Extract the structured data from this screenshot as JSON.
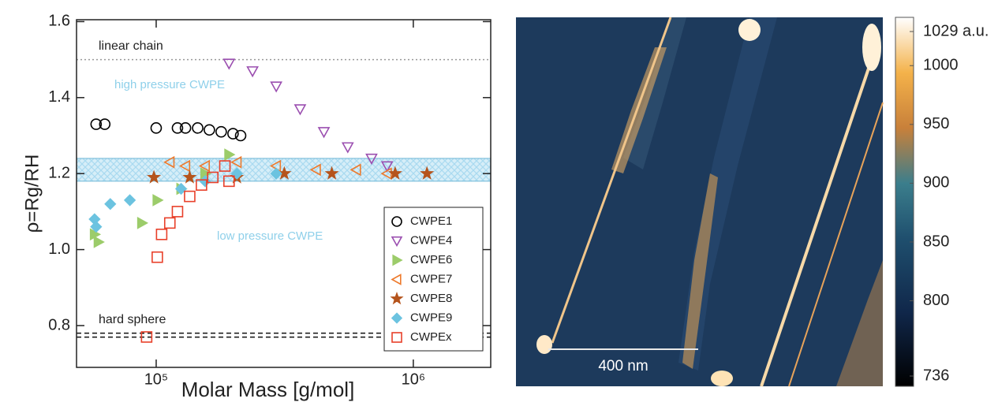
{
  "chart_data": [
    {
      "type": "scatter",
      "x_label": "Molar Mass [g/mol]",
      "y_label": "ρ=Rg/RH",
      "log_x": true,
      "xlim": [
        49000,
        2000000
      ],
      "xticks": [
        {
          "value": 100000,
          "label": "10⁵"
        },
        {
          "value": 1000000,
          "label": "10⁶"
        }
      ],
      "ylim": [
        0.69,
        1.605
      ],
      "yticks": [
        0.8,
        {
          "value": 1,
          "label": "1.0"
        },
        1.2,
        1.4,
        1.6
      ],
      "hlines": [
        {
          "value": 1.5,
          "style": "dotted",
          "label": "linear chain"
        },
        {
          "value": 0.78,
          "style": "dashed",
          "label": "hard sphere"
        }
      ],
      "band": [
        1.18,
        1.24
      ],
      "annotations": [
        "high pressure CWPE",
        "low pressure CWPE"
      ],
      "legend": "lower right",
      "series": [
        {
          "name": "CWPE1",
          "color": "#000000",
          "marker": "circle",
          "filled": false,
          "x": [
            58400,
            63100,
            100000,
            121000,
            130000,
            145000,
            161000,
            179000,
            199000,
            213000
          ],
          "values": [
            1.33,
            1.33,
            1.32,
            1.32,
            1.32,
            1.32,
            1.315,
            1.31,
            1.305,
            1.3
          ]
        },
        {
          "name": "CWPE4",
          "color": "#9b4fb0",
          "marker": "triangle-down",
          "filled": false,
          "x": [
            192000,
            237000,
            293000,
            363000,
            449000,
            556000,
            688000,
            791000
          ],
          "values": [
            1.49,
            1.47,
            1.43,
            1.37,
            1.31,
            1.27,
            1.24,
            1.22
          ]
        },
        {
          "name": "CWPE6",
          "color": "#9ccc6a",
          "marker": "triangle-right",
          "filled": true,
          "x": [
            57600,
            59600,
            88000,
            101000,
            125000,
            155000,
            192000
          ],
          "values": [
            1.04,
            1.02,
            1.07,
            1.13,
            1.16,
            1.2,
            1.25
          ]
        },
        {
          "name": "CWPE7",
          "color": "#ee7a2c",
          "marker": "triangle-left",
          "filled": false,
          "x": [
            113000,
            130000,
            155000,
            206000,
            293000,
            419000,
            600000,
            791000
          ],
          "values": [
            1.23,
            1.22,
            1.22,
            1.23,
            1.22,
            1.21,
            1.21,
            1.2
          ]
        },
        {
          "name": "CWPE8",
          "color": "#b5541c",
          "marker": "star",
          "filled": true,
          "x": [
            98000,
            135000,
            206000,
            315000,
            482000,
            850000,
            1130000
          ],
          "values": [
            1.19,
            1.19,
            1.19,
            1.2,
            1.2,
            1.2,
            1.2
          ]
        },
        {
          "name": "CWPE9",
          "color": "#6cc3e0",
          "marker": "diamond",
          "filled": true,
          "x": [
            57600,
            58400,
            66300,
            79000,
            125000,
            155000,
            206000,
            293000
          ],
          "values": [
            1.08,
            1.06,
            1.12,
            1.13,
            1.16,
            1.18,
            1.2,
            1.2
          ]
        },
        {
          "name": "CWPEx",
          "color": "#e8402a",
          "marker": "square",
          "filled": false,
          "x": [
            91800,
            101000,
            105000,
            113000,
            121000,
            135000,
            150000,
            166000,
            185000,
            192000
          ],
          "values": [
            0.77,
            0.98,
            1.04,
            1.07,
            1.1,
            1.14,
            1.17,
            1.19,
            1.22,
            1.18
          ]
        }
      ]
    },
    {
      "type": "image",
      "scale_bar": "400 nm",
      "clim": [
        736,
        1029
      ],
      "cticks": [
        736,
        800,
        850,
        900,
        950,
        1000,
        {
          "value": 1029,
          "label": "1029 a.u."
        }
      ]
    }
  ]
}
